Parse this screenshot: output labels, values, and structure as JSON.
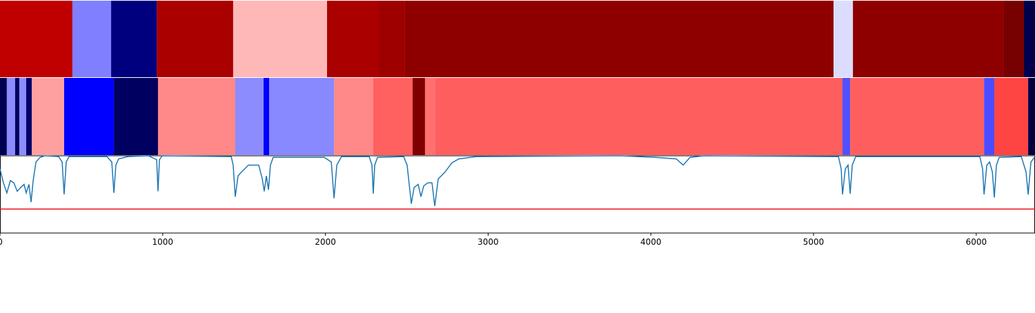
{
  "chart_data": [
    {
      "type": "strip",
      "edges": [
        0,
        445,
        683,
        963,
        1433,
        2010,
        2324,
        2489,
        5123,
        5242,
        6170,
        6293,
        6361
      ],
      "colors": [
        "#c00000",
        "#7f7fff",
        "#00007f",
        "#aa0000",
        "#ffb8b8",
        "#aa0000",
        "#9e0000",
        "#8e0000",
        "#dcdcff",
        "#8e0000",
        "#770000",
        "#00004c"
      ],
      "xlim": [
        0,
        6361
      ]
    },
    {
      "type": "strip",
      "edges": [
        0,
        42,
        93,
        119,
        161,
        195,
        394,
        700,
        971,
        1446,
        1620,
        1654,
        2053,
        2294,
        2536,
        2612,
        2676,
        5178,
        5225,
        6048,
        6111,
        6319,
        6361
      ],
      "colors": [
        "#000050",
        "#8c8cff",
        "#000060",
        "#8c8cff",
        "#00006a",
        "#ffa0a0",
        "#0000ff",
        "#000060",
        "#ff8888",
        "#8c8cff",
        "#0000ff",
        "#8888ff",
        "#ff8888",
        "#ff6060",
        "#800000",
        "#ff7070",
        "#ff5e5e",
        "#5050ff",
        "#ff5e5e",
        "#4c4cff",
        "#ff4444",
        "#000040"
      ],
      "xlim": [
        0,
        6361
      ]
    },
    {
      "type": "line",
      "x": [
        0,
        21,
        42,
        64,
        85,
        106,
        127,
        148,
        161,
        178,
        191,
        204,
        221,
        246,
        276,
        360,
        382,
        394,
        407,
        424,
        657,
        687,
        700,
        712,
        729,
        785,
        912,
        963,
        971,
        980,
        997,
        1421,
        1433,
        1446,
        1463,
        1484,
        1527,
        1590,
        1612,
        1624,
        1637,
        1650,
        1662,
        1679,
        1993,
        2036,
        2053,
        2070,
        2099,
        2269,
        2286,
        2294,
        2303,
        2320,
        2481,
        2502,
        2528,
        2545,
        2570,
        2587,
        2604,
        2629,
        2655,
        2672,
        2693,
        2735,
        2778,
        2820,
        2926,
        3817,
        4029,
        4156,
        4199,
        4241,
        4326,
        5153,
        5170,
        5178,
        5195,
        5212,
        5225,
        5238,
        5259,
        6022,
        6039,
        6048,
        6065,
        6082,
        6099,
        6111,
        6124,
        6141,
        6277,
        6306,
        6319,
        6336,
        6361
      ],
      "series": [
        {
          "color": "#1f77b4",
          "values": [
            0.83,
            0.65,
            0.52,
            0.68,
            0.65,
            0.54,
            0.59,
            0.63,
            0.52,
            0.63,
            0.4,
            0.68,
            0.92,
            0.98,
            1.0,
            0.99,
            0.92,
            0.5,
            0.92,
            0.99,
            0.99,
            0.92,
            0.52,
            0.88,
            0.96,
            0.99,
            1.0,
            0.95,
            0.54,
            0.95,
            1.0,
            0.99,
            0.88,
            0.47,
            0.74,
            0.79,
            0.88,
            0.88,
            0.7,
            0.54,
            0.74,
            0.56,
            0.88,
            0.98,
            0.98,
            0.92,
            0.45,
            0.88,
            0.99,
            0.99,
            0.88,
            0.51,
            0.88,
            0.98,
            0.99,
            0.88,
            0.38,
            0.59,
            0.63,
            0.47,
            0.61,
            0.65,
            0.65,
            0.35,
            0.7,
            0.79,
            0.91,
            0.96,
            0.99,
            1.0,
            0.98,
            0.96,
            0.88,
            0.98,
            1.0,
            0.99,
            0.83,
            0.5,
            0.83,
            0.88,
            0.51,
            0.88,
            0.99,
            0.99,
            0.83,
            0.5,
            0.88,
            0.92,
            0.79,
            0.46,
            0.88,
            0.98,
            0.99,
            0.79,
            0.5,
            0.92,
            0.99
          ]
        }
      ],
      "threshold": 0.31,
      "threshold_color": "#e8141c",
      "xlim": [
        0,
        6361
      ],
      "ylim": [
        0,
        1
      ],
      "xticks": [
        0,
        1000,
        2000,
        3000,
        4000,
        5000,
        6000
      ]
    }
  ]
}
